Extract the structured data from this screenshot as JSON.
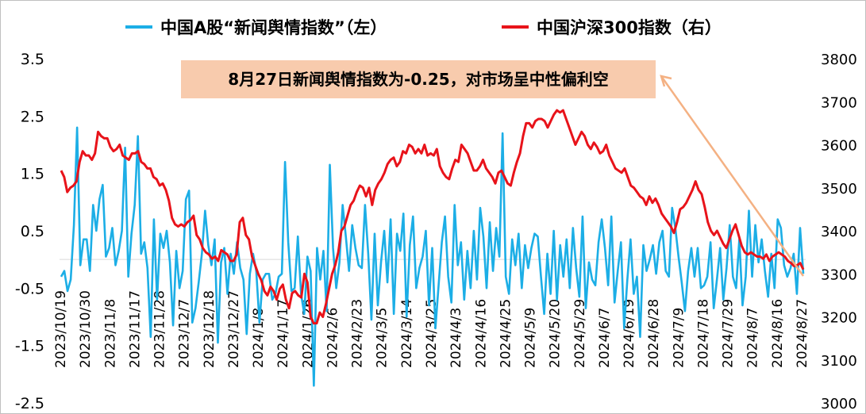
{
  "legend": {
    "left_series": "中国A股“新闻舆情指数”（左）",
    "right_series": "中国沪深300指数（右）"
  },
  "annotation": "8月27日新闻舆情指数为-0.25，对市场呈中性偏利空",
  "chart_data": {
    "type": "line",
    "title": "",
    "xlabel": "",
    "y_left_label": "",
    "y_right_label": "",
    "y_left_ticks": [
      "3.5",
      "2.5",
      "1.5",
      "0.5",
      "-0.5",
      "-1.5",
      "-2.5"
    ],
    "y_right_ticks": [
      "3800",
      "3700",
      "3600",
      "3500",
      "3400",
      "3300",
      "3200",
      "3100",
      "3000"
    ],
    "y_left_lim": [
      -2.5,
      3.5
    ],
    "y_right_lim": [
      3000,
      3800
    ],
    "x_tick_labels": [
      "2023/10/19",
      "2023/10/30",
      "2023/11/8",
      "2023/11/17",
      "2023/11/28",
      "2023/12/7",
      "2023/12/18",
      "2023/12/27",
      "2024/1/8",
      "2024/1/17",
      "2024/1/26",
      "2024/2/6",
      "2024/2/23",
      "2024/3/5",
      "2024/3/14",
      "2024/3/25",
      "2024/4/3",
      "2024/4/16",
      "2024/4/25",
      "2024/5/9",
      "2024/5/20",
      "2024/5/29",
      "2024/6/7",
      "2024/6/19",
      "2024/6/28",
      "2024/7/9",
      "2024/7/18",
      "2024/7/29",
      "2024/8/7",
      "2024/8/16",
      "2024/8/27"
    ],
    "grid": false,
    "legend_position": "top",
    "colors": {
      "sentiment": "#1caee6",
      "csi300": "#e8131a",
      "callout_bg": "#f8cbad",
      "arrow": "#f4b183"
    },
    "series": [
      {
        "name": "中国A股“新闻舆情指数”（左）",
        "axis": "left",
        "values": [
          -0.3,
          -0.2,
          -0.55,
          -0.35,
          0.6,
          2.3,
          -0.1,
          0.35,
          0.35,
          -0.2,
          0.95,
          0.5,
          1.05,
          1.3,
          0.05,
          0.2,
          0.55,
          -0.1,
          0.15,
          0.5,
          1.95,
          -0.3,
          0.45,
          0.95,
          2.15,
          0.1,
          0.3,
          -0.15,
          -1.35,
          0.7,
          -0.7,
          0.45,
          0.2,
          0.5,
          -0.05,
          -1.15,
          0.15,
          -0.5,
          -0.2,
          1.05,
          1.2,
          -1.1,
          -0.85,
          -0.4,
          0.1,
          0.85,
          0.25,
          -0.1,
          0.35,
          -1.45,
          -0.05,
          0.2,
          -0.6,
          0.1,
          -0.25,
          0.3,
          -0.15,
          -0.35,
          -1.3,
          -0.25,
          0.1,
          -0.2,
          -1.1,
          -0.35,
          -0.25,
          -0.25,
          -0.7,
          -0.6,
          -0.3,
          -0.25,
          1.7,
          0.3,
          -0.55,
          -0.5,
          0.4,
          -0.6,
          -0.95,
          0.05,
          -0.2,
          -2.2,
          0.2,
          -0.35,
          0.15,
          -0.9,
          1.65,
          0.2,
          -0.5,
          -0.05,
          0.95,
          0.4,
          -0.2,
          0.6,
          0.2,
          -0.1,
          -0.15,
          0.95,
          0.1,
          -1.05,
          0.45,
          -0.8,
          -0.05,
          0.5,
          -0.4,
          0.7,
          -0.95,
          0.45,
          0.15,
          0.8,
          -1.0,
          0.25,
          0.75,
          -0.5,
          -0.15,
          0.05,
          0.5,
          -0.8,
          0.2,
          -1.2,
          -0.45,
          0.3,
          0.75,
          -0.3,
          -0.75,
          0.95,
          -0.1,
          0.3,
          -0.7,
          0.15,
          -0.5,
          0.5,
          -0.35,
          0.9,
          0.4,
          -0.5,
          0.65,
          -0.2,
          0.55,
          0.05,
          2.2,
          -0.3,
          -0.6,
          0.35,
          -0.1,
          0.45,
          -0.5,
          0.25,
          -0.15,
          0.2,
          0.45,
          0.4,
          -0.3,
          -0.95,
          0.1,
          -0.6,
          0.5,
          -0.7,
          0.25,
          -0.3,
          0.35,
          -0.5,
          0.55,
          -0.15,
          -0.65,
          0.75,
          -0.85,
          -0.05,
          -0.35,
          -0.45,
          0.3,
          0.7,
          0.2,
          -0.45,
          0.75,
          -0.75,
          -0.2,
          0.3,
          -1.2,
          -0.35,
          0.35,
          -0.6,
          -0.3,
          -1.35,
          0.25,
          -0.2,
          0.0,
          0.25,
          -0.25,
          0.3,
          0.5,
          -0.2,
          -0.3,
          0.9,
          0.55,
          0.05,
          -0.4,
          -0.9,
          -0.2,
          0.2,
          -0.3,
          0.2,
          -0.5,
          -0.45,
          -0.3,
          0.3,
          -0.85,
          -0.35,
          0.2,
          -0.7,
          -0.15,
          0.6,
          -0.3,
          -0.5,
          0.35,
          -0.8,
          -0.3,
          0.85,
          -0.3,
          0.6,
          -0.05,
          0.35,
          -0.2,
          -0.65,
          0.1,
          -0.5,
          0.7,
          0.55,
          -0.1,
          -0.3,
          -0.15,
          0.1,
          -0.6,
          0.55,
          -0.25
        ]
      },
      {
        "name": "中国沪深300指数（右）",
        "axis": "right",
        "values": [
          3540,
          3525,
          3490,
          3500,
          3505,
          3515,
          3560,
          3585,
          3575,
          3575,
          3565,
          3580,
          3630,
          3620,
          3615,
          3615,
          3595,
          3585,
          3590,
          3600,
          3575,
          3570,
          3565,
          3580,
          3580,
          3585,
          3560,
          3555,
          3545,
          3545,
          3525,
          3520,
          3505,
          3510,
          3495,
          3470,
          3430,
          3415,
          3410,
          3415,
          3410,
          3420,
          3425,
          3435,
          3390,
          3380,
          3360,
          3350,
          3345,
          3335,
          3340,
          3330,
          3355,
          3350,
          3345,
          3330,
          3330,
          3345,
          3420,
          3430,
          3390,
          3380,
          3340,
          3320,
          3300,
          3285,
          3260,
          3250,
          3270,
          3260,
          3240,
          3265,
          3275,
          3240,
          3220,
          3255,
          3260,
          3250,
          3245,
          3300,
          3280,
          3200,
          3185,
          3185,
          3210,
          3200,
          3230,
          3265,
          3300,
          3320,
          3350,
          3400,
          3410,
          3435,
          3460,
          3470,
          3490,
          3505,
          3500,
          3480,
          3500,
          3460,
          3495,
          3510,
          3520,
          3535,
          3555,
          3565,
          3570,
          3550,
          3560,
          3585,
          3580,
          3600,
          3595,
          3580,
          3590,
          3580,
          3600,
          3575,
          3580,
          3575,
          3590,
          3550,
          3535,
          3525,
          3520,
          3545,
          3565,
          3560,
          3600,
          3590,
          3580,
          3560,
          3540,
          3540,
          3550,
          3565,
          3545,
          3535,
          3525,
          3510,
          3535,
          3540,
          3525,
          3510,
          3505,
          3535,
          3560,
          3580,
          3620,
          3650,
          3650,
          3640,
          3655,
          3660,
          3660,
          3655,
          3640,
          3655,
          3670,
          3680,
          3675,
          3680,
          3660,
          3640,
          3620,
          3600,
          3615,
          3630,
          3620,
          3600,
          3590,
          3605,
          3595,
          3580,
          3585,
          3600,
          3575,
          3560,
          3545,
          3540,
          3535,
          3545,
          3525,
          3505,
          3500,
          3490,
          3480,
          3475,
          3460,
          3480,
          3465,
          3475,
          3460,
          3440,
          3430,
          3420,
          3410,
          3395,
          3420,
          3450,
          3455,
          3465,
          3480,
          3495,
          3515,
          3495,
          3485,
          3455,
          3420,
          3400,
          3390,
          3400,
          3385,
          3370,
          3360,
          3380,
          3400,
          3415,
          3390,
          3365,
          3350,
          3345,
          3350,
          3345,
          3340,
          3340,
          3335,
          3345,
          3330,
          3340,
          3345,
          3350,
          3345,
          3340,
          3330,
          3325,
          3318,
          3320,
          3325,
          3310
        ]
      }
    ]
  }
}
